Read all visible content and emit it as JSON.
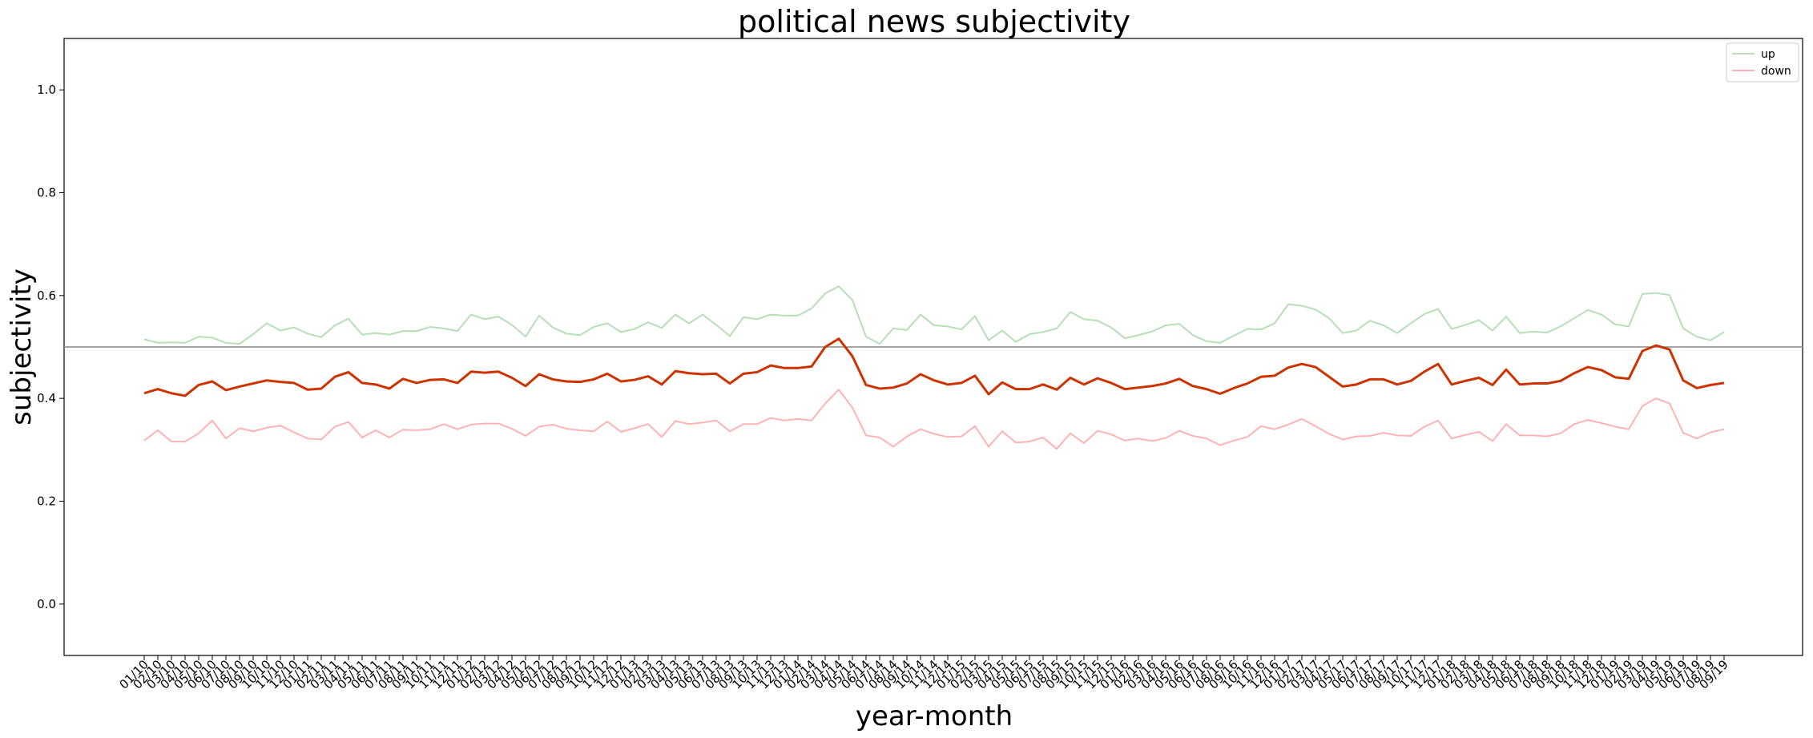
{
  "chart_data": {
    "type": "line",
    "title": "political news subjectivity",
    "xlabel": "year-month",
    "ylabel": "subjectivity",
    "ylim": [
      -0.1,
      1.1
    ],
    "yticks": [
      "0.0",
      "0.2",
      "0.4",
      "0.6",
      "0.8",
      "1.0"
    ],
    "reference_line": 0.5,
    "legend": {
      "placement": "top-right"
    },
    "x": [
      "01/10",
      "02/10",
      "03/10",
      "04/10",
      "05/10",
      "06/10",
      "07/10",
      "08/10",
      "09/10",
      "10/10",
      "11/10",
      "12/10",
      "01/11",
      "02/11",
      "03/11",
      "04/11",
      "05/11",
      "06/11",
      "07/11",
      "08/11",
      "09/11",
      "10/11",
      "11/11",
      "12/11",
      "01/12",
      "02/12",
      "03/12",
      "04/12",
      "05/12",
      "06/12",
      "07/12",
      "08/12",
      "09/12",
      "10/12",
      "11/12",
      "12/12",
      "01/13",
      "02/13",
      "03/13",
      "04/13",
      "05/13",
      "06/13",
      "07/13",
      "08/13",
      "09/13",
      "10/13",
      "11/13",
      "12/13",
      "01/14",
      "02/14",
      "03/14",
      "04/14",
      "05/14",
      "06/14",
      "07/14",
      "08/14",
      "09/14",
      "10/14",
      "11/14",
      "12/14",
      "01/15",
      "02/15",
      "03/15",
      "04/15",
      "05/15",
      "06/15",
      "07/15",
      "08/15",
      "09/15",
      "10/15",
      "11/15",
      "12/15",
      "01/16",
      "02/16",
      "03/16",
      "04/16",
      "05/16",
      "06/16",
      "07/16",
      "08/16",
      "09/16",
      "10/16",
      "11/16",
      "12/16",
      "01/17",
      "02/17",
      "03/17",
      "04/17",
      "05/17",
      "06/17",
      "07/17",
      "08/17",
      "09/17",
      "10/17",
      "11/17",
      "12/17",
      "01/18",
      "02/18",
      "03/18",
      "04/18",
      "05/18",
      "06/18",
      "07/18",
      "08/18",
      "09/18",
      "10/18",
      "11/18",
      "12/18",
      "01/19",
      "02/19",
      "03/19",
      "04/19",
      "05/19",
      "06/19",
      "07/19",
      "08/19",
      "09/19"
    ],
    "series": [
      {
        "name": "up",
        "color": "#b7dfb6",
        "values": [
          0.515,
          0.508,
          0.509,
          0.508,
          0.52,
          0.518,
          0.508,
          0.506,
          0.525,
          0.546,
          0.532,
          0.538,
          0.526,
          0.519,
          0.542,
          0.555,
          0.524,
          0.527,
          0.524,
          0.531,
          0.531,
          0.539,
          0.536,
          0.531,
          0.563,
          0.554,
          0.559,
          0.543,
          0.52,
          0.561,
          0.538,
          0.526,
          0.523,
          0.539,
          0.546,
          0.529,
          0.535,
          0.548,
          0.537,
          0.563,
          0.546,
          0.563,
          0.543,
          0.521,
          0.558,
          0.554,
          0.563,
          0.561,
          0.561,
          0.575,
          0.604,
          0.618,
          0.591,
          0.52,
          0.506,
          0.536,
          0.533,
          0.563,
          0.542,
          0.54,
          0.534,
          0.56,
          0.513,
          0.532,
          0.51,
          0.525,
          0.529,
          0.536,
          0.568,
          0.554,
          0.551,
          0.538,
          0.517,
          0.523,
          0.53,
          0.542,
          0.545,
          0.523,
          0.511,
          0.508,
          0.522,
          0.535,
          0.534,
          0.546,
          0.583,
          0.58,
          0.573,
          0.556,
          0.527,
          0.532,
          0.551,
          0.542,
          0.527,
          0.546,
          0.564,
          0.574,
          0.535,
          0.543,
          0.552,
          0.532,
          0.559,
          0.527,
          0.53,
          0.528,
          0.54,
          0.556,
          0.572,
          0.563,
          0.544,
          0.54,
          0.603,
          0.605,
          0.601,
          0.536,
          0.52,
          0.513,
          0.529
        ]
      },
      {
        "name": "down",
        "color": "#ffb3b3",
        "values": [
          0.318,
          0.338,
          0.316,
          0.316,
          0.332,
          0.357,
          0.322,
          0.342,
          0.336,
          0.343,
          0.347,
          0.334,
          0.322,
          0.32,
          0.345,
          0.354,
          0.324,
          0.338,
          0.324,
          0.339,
          0.338,
          0.34,
          0.35,
          0.34,
          0.349,
          0.351,
          0.351,
          0.341,
          0.327,
          0.345,
          0.349,
          0.341,
          0.338,
          0.336,
          0.355,
          0.335,
          0.342,
          0.35,
          0.325,
          0.356,
          0.35,
          0.353,
          0.357,
          0.336,
          0.35,
          0.35,
          0.362,
          0.357,
          0.36,
          0.357,
          0.39,
          0.417,
          0.382,
          0.328,
          0.324,
          0.306,
          0.326,
          0.34,
          0.331,
          0.325,
          0.326,
          0.346,
          0.306,
          0.336,
          0.314,
          0.316,
          0.324,
          0.302,
          0.332,
          0.313,
          0.337,
          0.33,
          0.318,
          0.322,
          0.317,
          0.323,
          0.337,
          0.327,
          0.322,
          0.309,
          0.318,
          0.325,
          0.346,
          0.34,
          0.349,
          0.36,
          0.346,
          0.331,
          0.32,
          0.326,
          0.327,
          0.333,
          0.328,
          0.327,
          0.345,
          0.357,
          0.322,
          0.329,
          0.335,
          0.317,
          0.35,
          0.328,
          0.328,
          0.326,
          0.332,
          0.35,
          0.358,
          0.352,
          0.345,
          0.34,
          0.385,
          0.4,
          0.39,
          0.333,
          0.322,
          0.334,
          0.34
        ]
      },
      {
        "name": "",
        "color": "#cc3300",
        "values": [
          0.41,
          0.418,
          0.41,
          0.405,
          0.426,
          0.433,
          0.416,
          0.423,
          0.429,
          0.435,
          0.432,
          0.43,
          0.417,
          0.419,
          0.442,
          0.451,
          0.43,
          0.427,
          0.419,
          0.438,
          0.43,
          0.436,
          0.437,
          0.43,
          0.452,
          0.45,
          0.452,
          0.44,
          0.424,
          0.447,
          0.437,
          0.433,
          0.432,
          0.437,
          0.448,
          0.433,
          0.436,
          0.443,
          0.427,
          0.453,
          0.449,
          0.447,
          0.448,
          0.429,
          0.448,
          0.451,
          0.464,
          0.459,
          0.459,
          0.462,
          0.5,
          0.516,
          0.482,
          0.426,
          0.419,
          0.421,
          0.429,
          0.447,
          0.435,
          0.427,
          0.43,
          0.444,
          0.408,
          0.431,
          0.418,
          0.418,
          0.427,
          0.417,
          0.44,
          0.427,
          0.439,
          0.43,
          0.418,
          0.421,
          0.424,
          0.429,
          0.438,
          0.424,
          0.418,
          0.409,
          0.42,
          0.429,
          0.442,
          0.444,
          0.46,
          0.467,
          0.461,
          0.442,
          0.423,
          0.427,
          0.437,
          0.437,
          0.427,
          0.434,
          0.452,
          0.467,
          0.427,
          0.434,
          0.44,
          0.426,
          0.456,
          0.427,
          0.429,
          0.429,
          0.434,
          0.449,
          0.461,
          0.455,
          0.441,
          0.438,
          0.492,
          0.503,
          0.495,
          0.435,
          0.42,
          0.426,
          0.43
        ]
      }
    ]
  }
}
